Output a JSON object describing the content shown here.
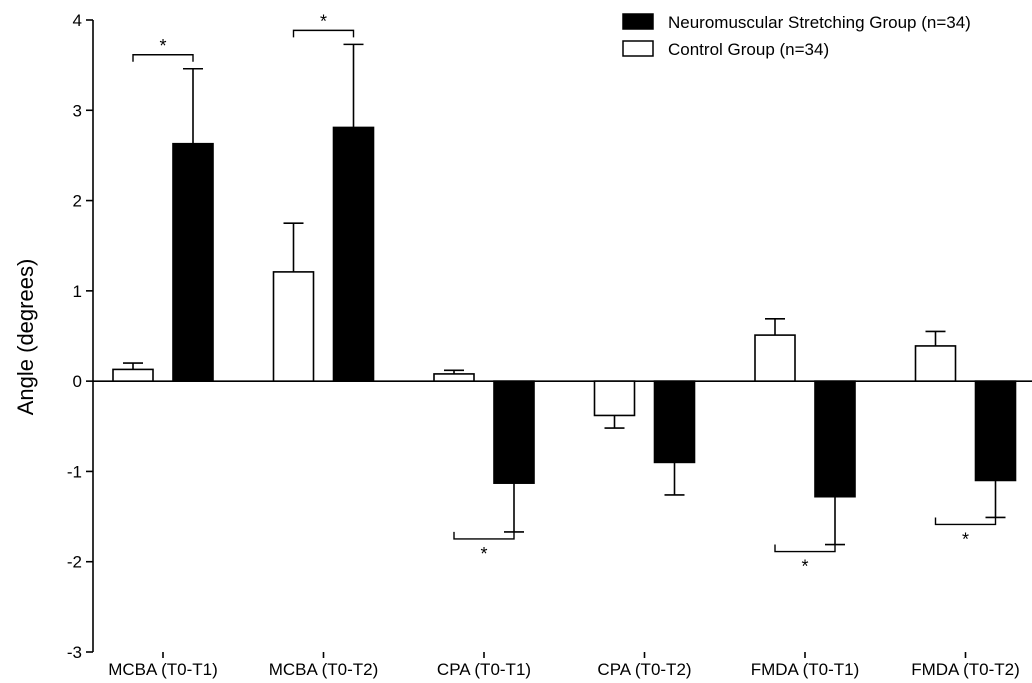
{
  "chart_data": {
    "type": "bar",
    "title": "",
    "xlabel": "",
    "ylabel": "Angle (degrees)",
    "ylim": [
      -3,
      4
    ],
    "yticks": [
      "-3",
      "-2",
      "-1",
      "0",
      "1",
      "2",
      "3",
      "4"
    ],
    "categories": [
      "MCBA (T0-T1)",
      "MCBA (T0-T2)",
      "CPA (T0-T1)",
      "CPA (T0-T2)",
      "FMDA (T0-T1)",
      "FMDA (T0-T2)"
    ],
    "series": [
      {
        "name": "Neuromuscular Stretching Group (n=34)",
        "color": "#000000",
        "fill": "solid",
        "values": [
          2.63,
          2.81,
          -1.13,
          -0.9,
          -1.28,
          -1.1
        ],
        "errors": [
          0.83,
          0.92,
          0.54,
          0.36,
          0.53,
          0.41
        ]
      },
      {
        "name": "Control Group (n=34)",
        "color": "#ffffff",
        "fill": "open",
        "values": [
          0.13,
          1.21,
          0.08,
          -0.38,
          0.51,
          0.39
        ],
        "errors": [
          0.07,
          0.54,
          0.04,
          0.14,
          0.18,
          0.16
        ]
      }
    ],
    "significance": [
      {
        "category": "MCBA (T0-T1)",
        "label": "*",
        "placement": "above"
      },
      {
        "category": "MCBA (T0-T2)",
        "label": "*",
        "placement": "above"
      },
      {
        "category": "CPA (T0-T1)",
        "label": "*",
        "placement": "below"
      },
      {
        "category": "FMDA (T0-T1)",
        "label": "*",
        "placement": "below"
      },
      {
        "category": "FMDA (T0-T2)",
        "label": "*",
        "placement": "below"
      }
    ],
    "legend_position": "top-right",
    "grid": false
  }
}
